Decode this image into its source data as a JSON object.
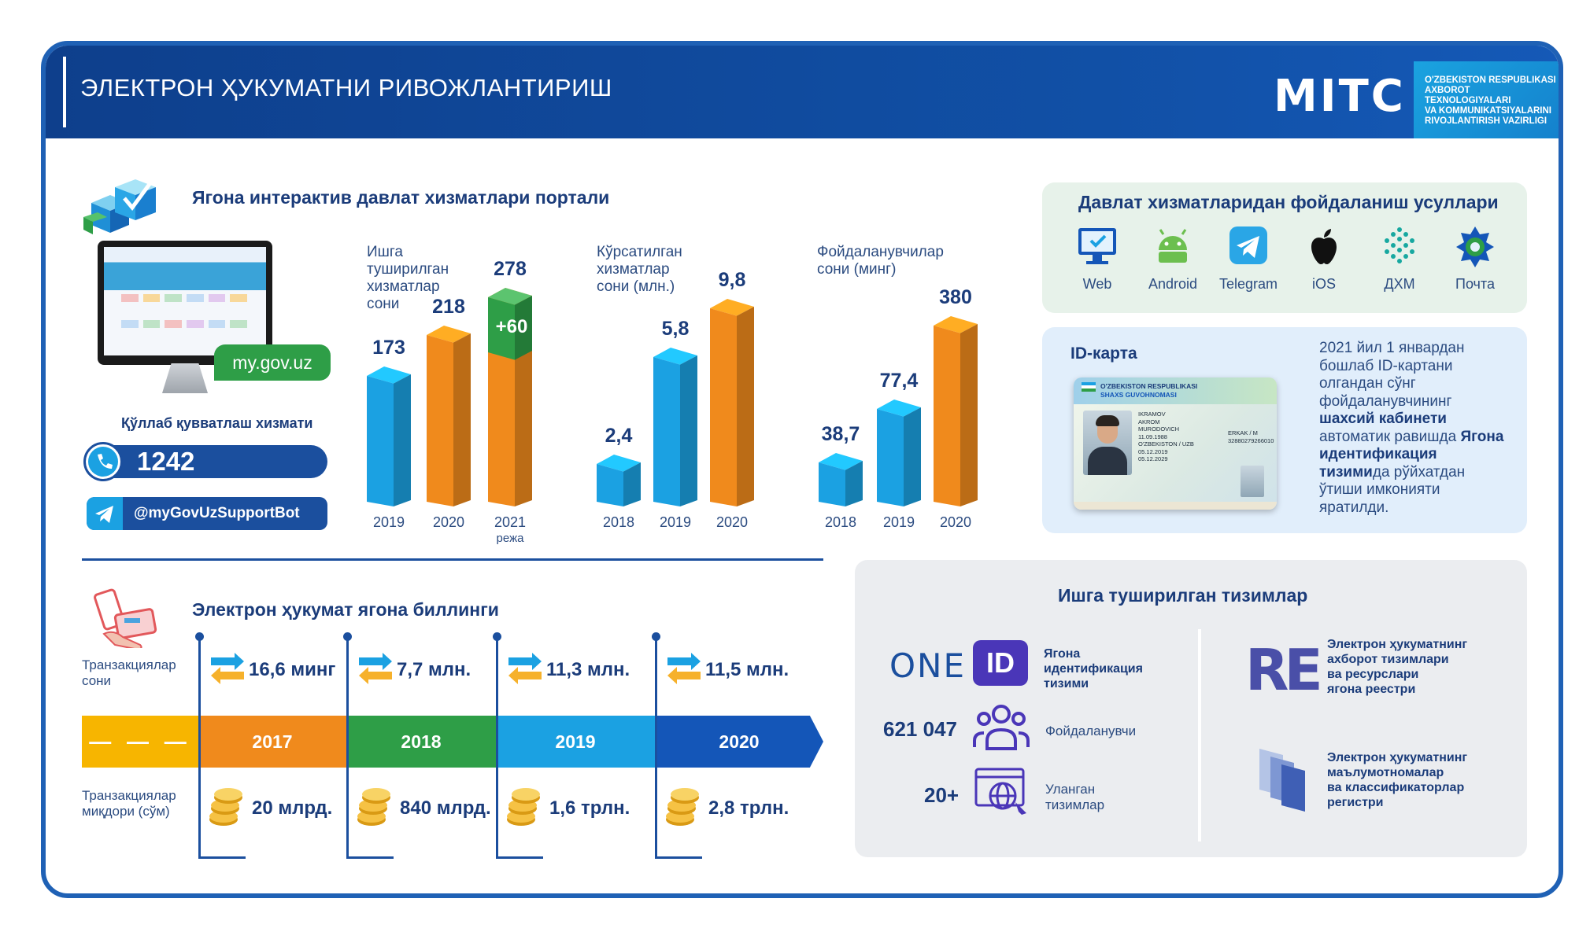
{
  "header": {
    "title": "ЭЛЕКТРОН ҲУКУМАТНИ РИВОЖЛАНТИРИШ",
    "logo": "MITC",
    "ministry_lines": [
      "O'ZBEKISTON RESPUBLIKASI",
      "AXBOROT TEXNOLOGIYALARI",
      "VA KOMMUNIKATSIYALARINI",
      "RIVOJLANTIRISH VAZIRLIGI"
    ]
  },
  "portal": {
    "title": "Ягона интерактив давлат хизматлари портали",
    "site": "my.gov.uz",
    "support_title": "Қўллаб қувватлаш хизмати",
    "phone": "1242",
    "bot": "@myGovUzSupportBot"
  },
  "charts": [
    {
      "label_lines": [
        "Ишга",
        "туширилган",
        "хизматлар",
        "сони"
      ],
      "bars": [
        {
          "x": "2019",
          "value": "173",
          "color": "#1ba1e2"
        },
        {
          "x": "2020",
          "value": "218",
          "color": "#f08a1c"
        },
        {
          "x": "2021",
          "sub": "режа",
          "value": "278",
          "extra": "+60",
          "color": "#f08a1c"
        }
      ]
    },
    {
      "label_lines": [
        "Кўрсатилган",
        "хизматлар",
        "сони (млн.)"
      ],
      "bars": [
        {
          "x": "2018",
          "value": "2,4",
          "color": "#1ba1e2"
        },
        {
          "x": "2019",
          "value": "5,8",
          "color": "#1ba1e2"
        },
        {
          "x": "2020",
          "value": "9,8",
          "color": "#f08a1c"
        }
      ]
    },
    {
      "label_lines": [
        "Фойдаланувчилар",
        "сони (минг)"
      ],
      "bars": [
        {
          "x": "2018",
          "value": "38,7",
          "color": "#1ba1e2"
        },
        {
          "x": "2019",
          "value": "77,4",
          "color": "#1ba1e2"
        },
        {
          "x": "2020",
          "value": "380",
          "color": "#f08a1c"
        }
      ]
    }
  ],
  "methods": {
    "title": "Давлат хизматларидан фойдаланиш усуллари",
    "items": [
      {
        "label": "Web",
        "icon": "monitor-icon"
      },
      {
        "label": "Android",
        "icon": "android-icon"
      },
      {
        "label": "Telegram",
        "icon": "telegram-icon"
      },
      {
        "label": "iOS",
        "icon": "apple-icon"
      },
      {
        "label": "ДХМ",
        "icon": "dhm-icon"
      },
      {
        "label": "Почта",
        "icon": "post-icon"
      }
    ]
  },
  "idcard": {
    "title": "ID-карта",
    "card_title1": "O'ZBEKISTON RESPUBLIKASI",
    "card_title2": "SHAXS GUVOHNOMASI",
    "card_fields": [
      "IKRAMOV",
      "AKROM",
      "MURODOVICH",
      "11.09.1988",
      "O'ZBEKISTON / UZB",
      "05.12.2019",
      "05.12.2029",
      "ERKAK / M",
      "32880279266010"
    ],
    "desc_parts": [
      {
        "text": "2021 йил 1 январдан бошлаб ID-картани олгандан сўнг фойдаланувчининг ",
        "bold": false
      },
      {
        "text": "шахсий кабинети",
        "bold": true
      },
      {
        "text": " автоматик равишда ",
        "bold": false
      },
      {
        "text": "Ягона идентификация тизими",
        "bold": true
      },
      {
        "text": "да рўйхатдан ўтиши имконияти яратилди.",
        "bold": false
      }
    ]
  },
  "billing": {
    "title": "Электрон ҳукумат ягона биллинги",
    "row1_label": [
      "Транзакциялар",
      "сони"
    ],
    "row2_label": [
      "Транзакциялар",
      "миқдори (сўм)"
    ],
    "dashes": "— — —",
    "years": [
      {
        "year": "2017",
        "count": "16,6 минг",
        "amount": "20 млрд.",
        "color": "#f08a1c"
      },
      {
        "year": "2018",
        "count": "7,7 млн.",
        "amount": "840 млрд.",
        "color": "#2e9e47"
      },
      {
        "year": "2019",
        "count": "11,3 млн.",
        "amount": "1,6 трлн.",
        "color": "#1ba1e2"
      },
      {
        "year": "2020",
        "count": "11,5 млн.",
        "amount": "2,8 трлн.",
        "color": "#1456b8"
      }
    ]
  },
  "systems": {
    "title": "Ишга туширилган тизимлар",
    "oneid_text": "ONE",
    "oneid_badge": "ID",
    "oneid_label": [
      "Ягона",
      "идентификация",
      "тизими"
    ],
    "users_value": "621 047",
    "users_label": "Фойдаланувчи",
    "linked_value": "20+",
    "linked_label": [
      "Уланган",
      "тизимлар"
    ],
    "re_logo": "RE",
    "re_label": [
      "Электрон ҳукуматнинг",
      "ахборот тизимлари",
      "ва ресурслари",
      "ягона реестри"
    ],
    "reg_label": [
      "Электрон ҳукуматнинг",
      "маълумотномалар",
      "ва классификаторлар",
      "регистри"
    ]
  }
}
